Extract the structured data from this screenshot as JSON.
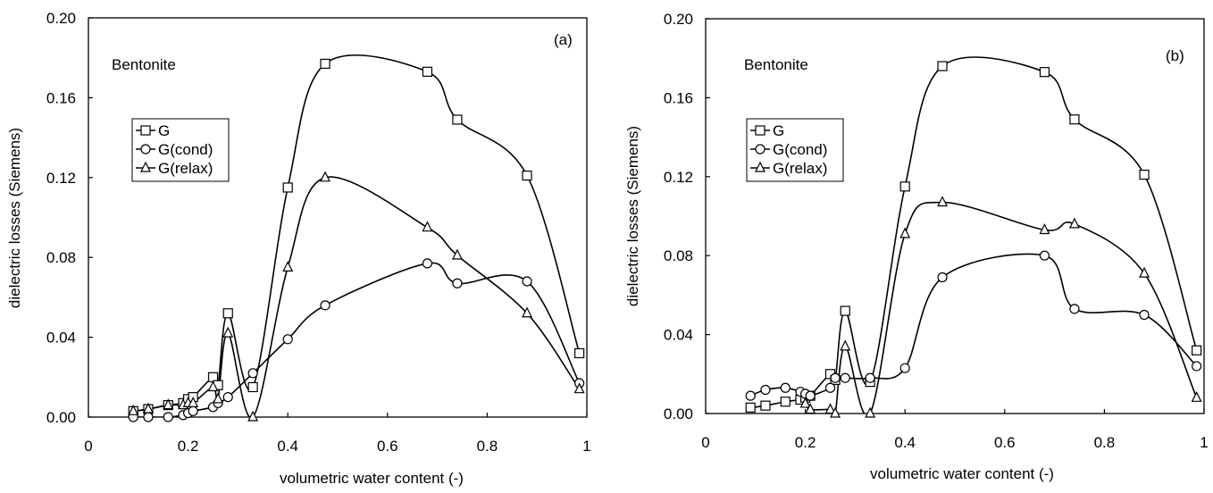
{
  "chart_data": [
    {
      "type": "line",
      "panel_label": "(a)",
      "annotation": "Bentonite",
      "xlabel": "volumetric water content (-)",
      "ylabel": "dielectric losses (Siemens)",
      "xlim": [
        0,
        1
      ],
      "ylim": [
        0,
        0.2
      ],
      "x_ticks": [
        0,
        0.2,
        0.4,
        0.6,
        0.8,
        1
      ],
      "x_tick_labels": [
        "0",
        "0.2",
        "0.4",
        "0.6",
        "0.8",
        "1"
      ],
      "y_ticks": [
        0,
        0.04,
        0.08,
        0.12,
        0.16,
        0.2
      ],
      "y_tick_labels": [
        "0.00",
        "0.04",
        "0.08",
        "0.12",
        "0.16",
        "0.20"
      ],
      "grid": false,
      "legend_position": "upper-left",
      "series": [
        {
          "name": "G",
          "marker": "square",
          "points": [
            [
              0.09,
              0.003
            ],
            [
              0.12,
              0.004
            ],
            [
              0.16,
              0.006
            ],
            [
              0.19,
              0.007
            ],
            [
              0.2,
              0.009
            ],
            [
              0.21,
              0.01
            ],
            [
              0.25,
              0.02
            ],
            [
              0.26,
              0.016
            ],
            [
              0.28,
              0.052
            ],
            [
              0.33,
              0.015
            ],
            [
              0.4,
              0.115
            ],
            [
              0.475,
              0.177
            ],
            [
              0.68,
              0.173
            ],
            [
              0.74,
              0.149
            ],
            [
              0.88,
              0.121
            ],
            [
              0.985,
              0.032
            ]
          ]
        },
        {
          "name": "G(cond)",
          "marker": "circle",
          "points": [
            [
              0.09,
              0.0
            ],
            [
              0.12,
              0.0
            ],
            [
              0.16,
              0.0
            ],
            [
              0.19,
              0.001
            ],
            [
              0.2,
              0.002
            ],
            [
              0.21,
              0.003
            ],
            [
              0.25,
              0.005
            ],
            [
              0.26,
              0.007
            ],
            [
              0.28,
              0.01
            ],
            [
              0.33,
              0.022
            ],
            [
              0.4,
              0.039
            ],
            [
              0.475,
              0.056
            ],
            [
              0.68,
              0.077
            ],
            [
              0.74,
              0.067
            ],
            [
              0.88,
              0.068
            ],
            [
              0.985,
              0.017
            ]
          ]
        },
        {
          "name": "G(relax)",
          "marker": "triangle",
          "points": [
            [
              0.09,
              0.003
            ],
            [
              0.12,
              0.004
            ],
            [
              0.16,
              0.006
            ],
            [
              0.19,
              0.006
            ],
            [
              0.2,
              0.007
            ],
            [
              0.21,
              0.007
            ],
            [
              0.25,
              0.015
            ],
            [
              0.26,
              0.009
            ],
            [
              0.28,
              0.042
            ],
            [
              0.33,
              0.0
            ],
            [
              0.4,
              0.075
            ],
            [
              0.475,
              0.12
            ],
            [
              0.68,
              0.095
            ],
            [
              0.74,
              0.081
            ],
            [
              0.88,
              0.052
            ],
            [
              0.985,
              0.014
            ]
          ]
        }
      ]
    },
    {
      "type": "line",
      "panel_label": "(b)",
      "annotation": "Bentonite",
      "xlabel": "volumetric water content (-)",
      "ylabel": "dielectric losses (Siemens)",
      "xlim": [
        0,
        1
      ],
      "ylim": [
        0,
        0.2
      ],
      "x_ticks": [
        0,
        0.2,
        0.4,
        0.6,
        0.8,
        1
      ],
      "x_tick_labels": [
        "0",
        "0.2",
        "0.4",
        "0.6",
        "0.8",
        "1"
      ],
      "y_ticks": [
        0,
        0.04,
        0.08,
        0.12,
        0.16,
        0.2
      ],
      "y_tick_labels": [
        "0.00",
        "0.04",
        "0.08",
        "0.12",
        "0.16",
        "0.20"
      ],
      "grid": false,
      "legend_position": "upper-left",
      "series": [
        {
          "name": "G",
          "marker": "square",
          "points": [
            [
              0.09,
              0.003
            ],
            [
              0.12,
              0.004
            ],
            [
              0.16,
              0.006
            ],
            [
              0.19,
              0.007
            ],
            [
              0.2,
              0.008
            ],
            [
              0.21,
              0.009
            ],
            [
              0.25,
              0.02
            ],
            [
              0.26,
              0.017
            ],
            [
              0.28,
              0.052
            ],
            [
              0.33,
              0.016
            ],
            [
              0.4,
              0.115
            ],
            [
              0.475,
              0.176
            ],
            [
              0.68,
              0.173
            ],
            [
              0.74,
              0.149
            ],
            [
              0.88,
              0.121
            ],
            [
              0.985,
              0.032
            ]
          ]
        },
        {
          "name": "G(cond)",
          "marker": "circle",
          "points": [
            [
              0.09,
              0.009
            ],
            [
              0.12,
              0.012
            ],
            [
              0.16,
              0.013
            ],
            [
              0.19,
              0.011
            ],
            [
              0.2,
              0.01
            ],
            [
              0.21,
              0.009
            ],
            [
              0.25,
              0.013
            ],
            [
              0.26,
              0.018
            ],
            [
              0.28,
              0.018
            ],
            [
              0.33,
              0.018
            ],
            [
              0.4,
              0.023
            ],
            [
              0.475,
              0.069
            ],
            [
              0.68,
              0.08
            ],
            [
              0.74,
              0.053
            ],
            [
              0.88,
              0.05
            ],
            [
              0.985,
              0.024
            ]
          ]
        },
        {
          "name": "G(relax)",
          "marker": "triangle",
          "points": [
            [
              0.2,
              0.005
            ],
            [
              0.21,
              0.002
            ],
            [
              0.25,
              0.002
            ],
            [
              0.26,
              0.0
            ],
            [
              0.28,
              0.034
            ],
            [
              0.33,
              0.0
            ],
            [
              0.4,
              0.091
            ],
            [
              0.475,
              0.107
            ],
            [
              0.68,
              0.093
            ],
            [
              0.74,
              0.096
            ],
            [
              0.88,
              0.071
            ],
            [
              0.985,
              0.008
            ]
          ]
        }
      ]
    }
  ]
}
